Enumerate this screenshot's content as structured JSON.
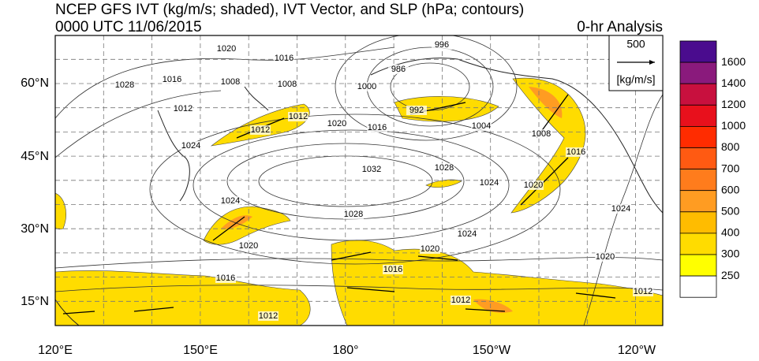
{
  "title": "NCEP GFS IVT (kg/m/s; shaded), IVT Vector, and SLP (hPa; contours)",
  "subtitle": "0000 UTC 11/06/2015",
  "analysis": "0-hr Analysis",
  "reference_vector": {
    "value": "500",
    "units": "[kg/m/s]"
  },
  "longitude_labels": [
    "120°E",
    "150°E",
    "180°",
    "150°W",
    "120°W"
  ],
  "latitude_labels": [
    "60°N",
    "45°N",
    "30°N",
    "15°N"
  ],
  "contour_labels": [
    "996",
    "1020",
    "1016",
    "1028",
    "1016",
    "1008",
    "1008",
    "986",
    "1012",
    "1012",
    "1012",
    "1000",
    "992",
    "1020",
    "1016",
    "1004",
    "1008",
    "1024",
    "1032",
    "1028",
    "1024",
    "1016",
    "1020",
    "1024",
    "1028",
    "1024",
    "1020",
    "1024",
    "1020",
    "1020",
    "1016",
    "1016",
    "1012",
    "1012",
    "1012"
  ],
  "colorbar": {
    "levels": [
      1600,
      1400,
      1200,
      1000,
      800,
      700,
      600,
      500,
      400,
      300,
      250
    ],
    "colors": [
      "#4a0c8e",
      "#8a1a7c",
      "#c8103e",
      "#e8101c",
      "#ff2c00",
      "#ff5a12",
      "#ff7c1c",
      "#ff9c22",
      "#ffbc00",
      "#ffdc00",
      "#ffff00",
      "#ffffff"
    ]
  }
}
